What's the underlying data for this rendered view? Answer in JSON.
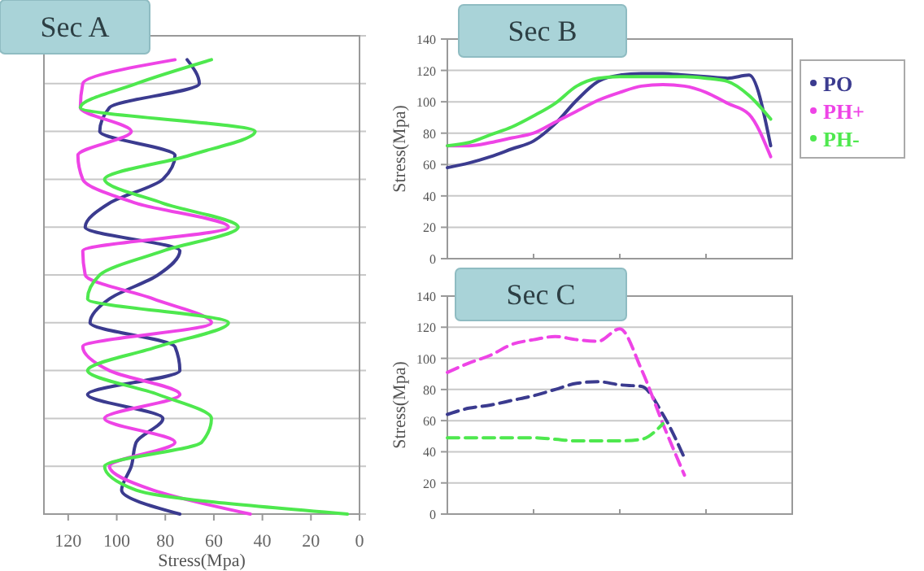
{
  "chart_data": [
    {
      "type": "line",
      "title": "Sec A",
      "orientation": "horizontal",
      "xlabel": "Stress(Mpa)",
      "xlim": [
        130,
        0
      ],
      "xticks": [
        120,
        100,
        80,
        60,
        40,
        20,
        0
      ],
      "tick_labels": "x",
      "grid": "y",
      "categories": [
        null,
        null,
        null,
        null,
        null,
        null,
        null,
        null,
        null,
        null,
        null,
        null,
        null,
        null,
        null,
        null,
        null,
        null,
        null,
        null,
        null
      ],
      "series": [
        {
          "color": "#3b3b8f",
          "values": [
            null,
            71,
            66,
            103,
            107,
            76,
            81,
            103,
            113,
            74,
            83,
            103,
            111,
            76,
            74,
            112,
            81,
            92,
            94,
            98,
            74
          ]
        },
        {
          "color": "#ee44e6",
          "values": [
            null,
            76,
            114,
            115,
            94,
            116,
            114,
            92,
            54,
            114,
            113,
            85,
            61,
            114,
            103,
            74,
            105,
            76,
            103,
            85,
            45
          ]
        },
        {
          "color": "#4ee84e",
          "values": [
            null,
            61,
            92,
            115,
            43,
            70,
            105,
            81,
            50,
            81,
            107,
            112,
            54,
            83,
            112,
            83,
            61,
            65,
            105,
            92,
            5
          ]
        }
      ]
    },
    {
      "type": "line",
      "title": "Sec B",
      "ylabel": "Stress(Mpa)",
      "ylim": [
        0,
        140
      ],
      "yticks": [
        0,
        20,
        40,
        60,
        80,
        100,
        120,
        140
      ],
      "grid": "y",
      "legend": "right",
      "categories": [
        null,
        null,
        null,
        null,
        null,
        null,
        null,
        null,
        null,
        null,
        null,
        null,
        null,
        null,
        null,
        null,
        null
      ],
      "series": [
        {
          "name": "PO",
          "color": "#3b3b8f",
          "values": [
            58,
            61,
            65,
            70,
            75,
            86,
            101,
            113,
            117,
            118,
            118,
            117,
            116,
            115,
            117,
            72,
            null
          ]
        },
        {
          "name": "PH+",
          "color": "#ee44e6",
          "values": [
            72,
            72,
            74,
            77,
            80,
            87,
            94,
            101,
            106,
            110,
            111,
            110,
            106,
            99,
            92,
            65,
            null
          ]
        },
        {
          "name": "PH-",
          "color": "#4ee84e",
          "values": [
            72,
            74,
            79,
            84,
            91,
            99,
            110,
            115,
            116,
            116,
            116,
            116,
            115,
            113,
            104,
            89,
            null
          ]
        }
      ]
    },
    {
      "type": "line",
      "title": "Sec C",
      "ylabel": "Stress(Mpa)",
      "ylim": [
        0,
        140
      ],
      "yticks": [
        0,
        20,
        40,
        60,
        80,
        100,
        120,
        140
      ],
      "grid": "y",
      "line_style": "dashed",
      "categories": [
        null,
        null,
        null,
        null,
        null,
        null,
        null,
        null,
        null,
        null,
        null,
        null,
        null,
        null,
        null,
        null,
        null
      ],
      "series": [
        {
          "color": "#3b3b8f",
          "values": [
            64,
            68,
            70,
            73,
            76,
            80,
            84,
            85,
            83,
            82,
            64,
            36,
            null,
            null,
            null,
            null,
            null
          ]
        },
        {
          "color": "#ee44e6",
          "values": [
            91,
            97,
            102,
            109,
            112,
            114,
            112,
            111,
            119,
            93,
            58,
            25,
            null,
            null,
            null,
            null,
            null
          ]
        },
        {
          "color": "#4ee84e",
          "values": [
            49,
            49,
            49,
            49,
            49,
            48,
            47,
            47,
            47,
            48,
            58,
            null,
            null,
            null,
            null,
            null,
            null
          ]
        }
      ]
    }
  ]
}
